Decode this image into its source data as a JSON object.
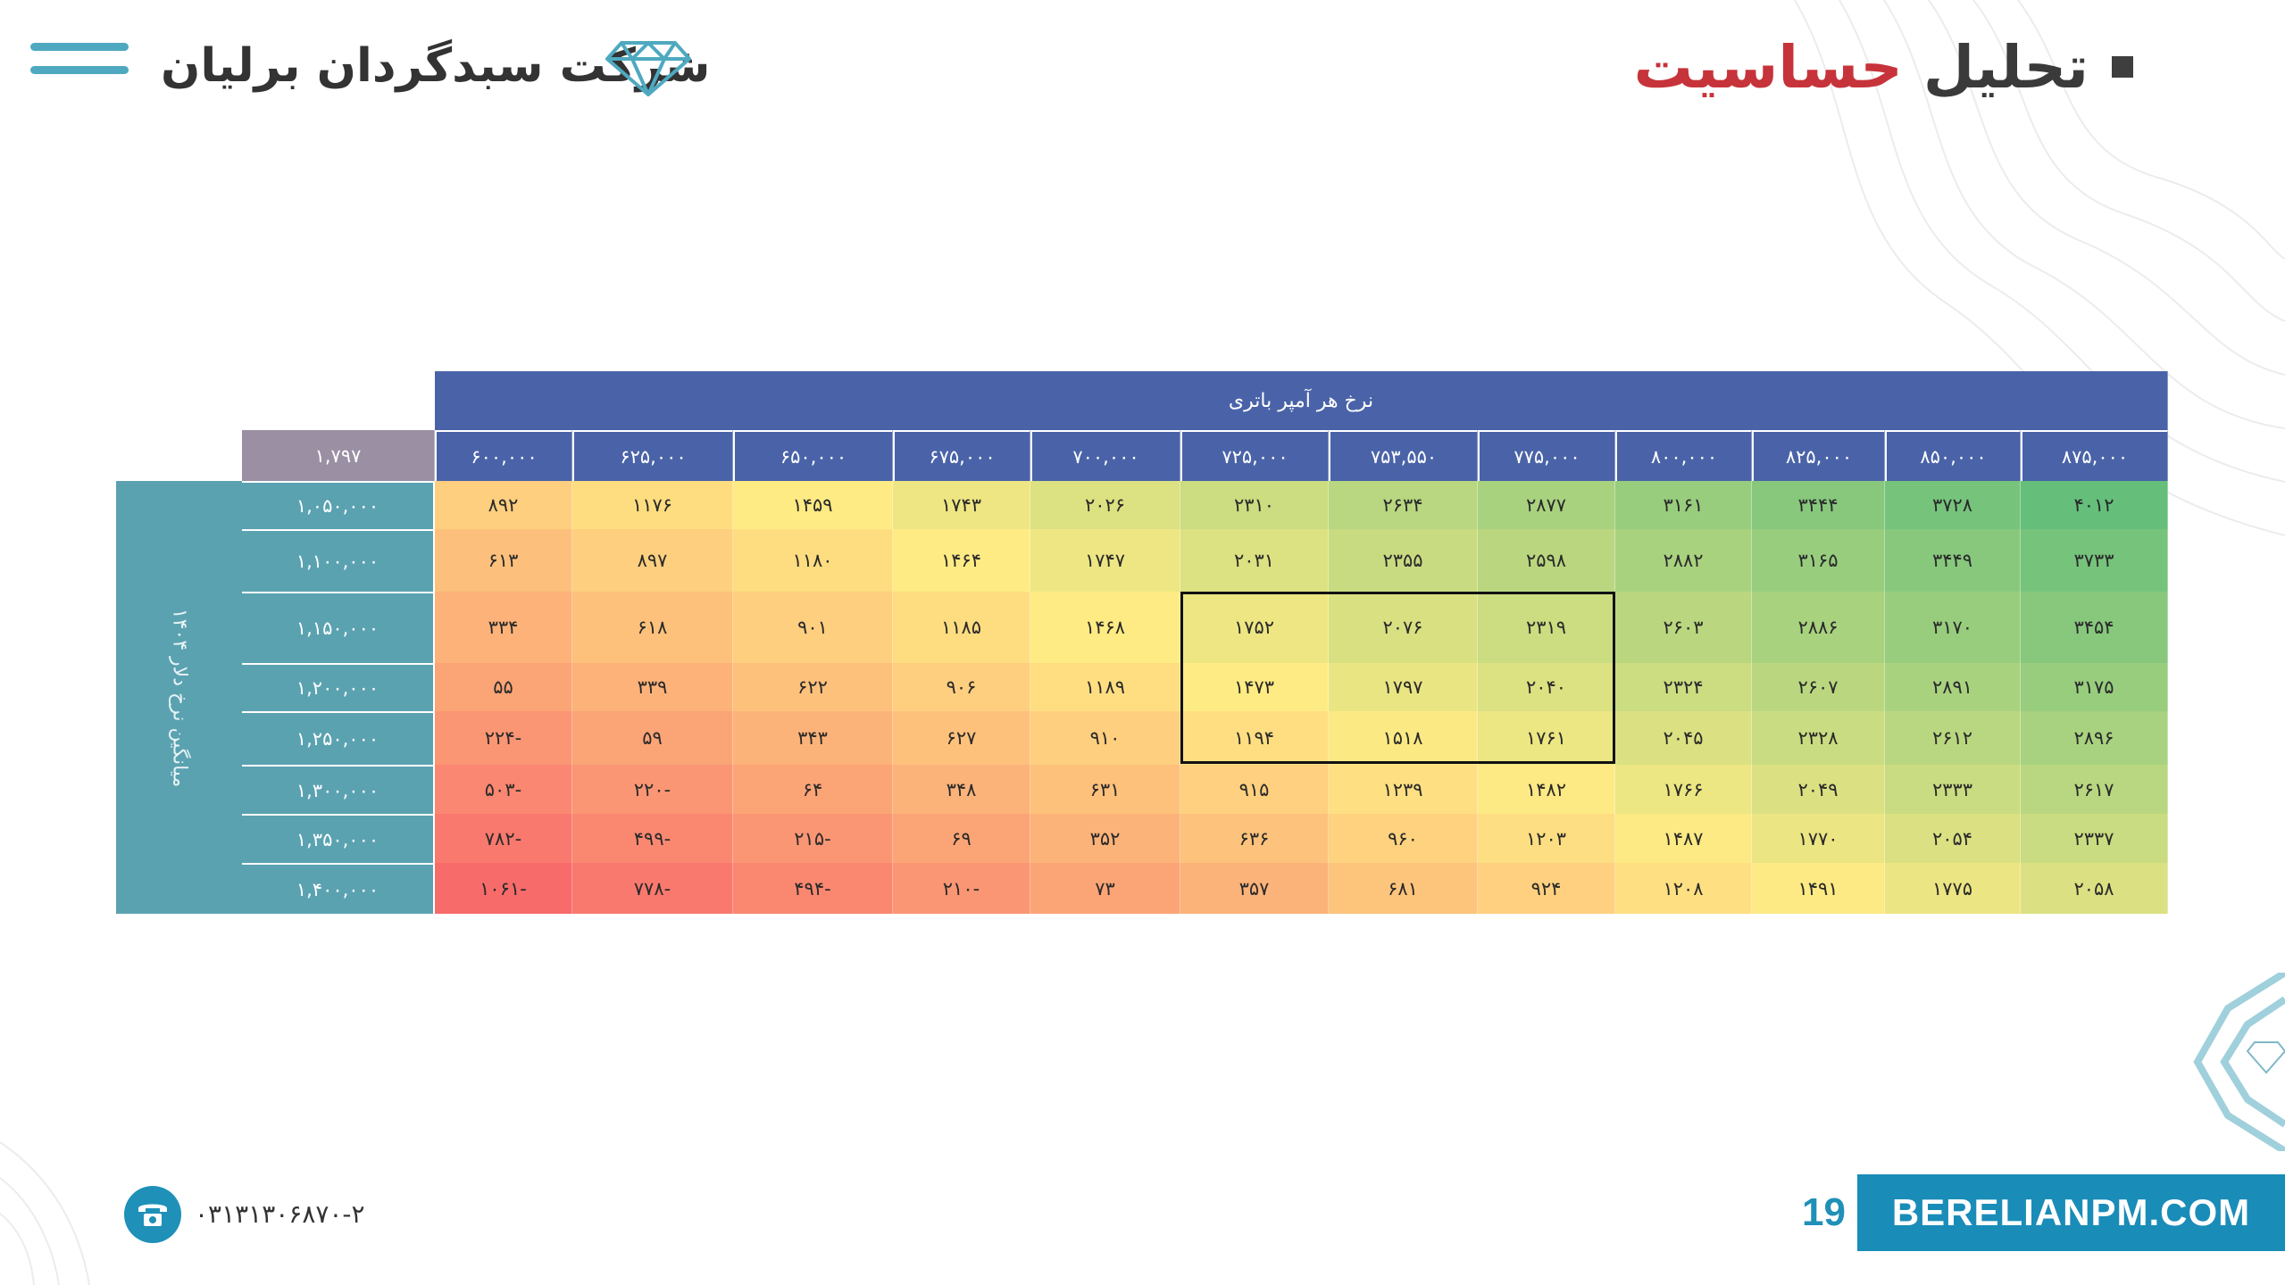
{
  "header": {
    "title_dark": "تحلیل",
    "title_red": "حساسیت",
    "company_name": "شرکت سبدگردان برلیان"
  },
  "icons": {
    "menu": "menu-lines-icon",
    "logo": "diamond-icon",
    "phone": "phone-icon"
  },
  "colors": {
    "header_blue": "#4a63a8",
    "row_header_teal": "#5ba2b1",
    "corner_purple": "#9a8fa3",
    "title_red": "#c7333a",
    "brand_blue": "#1a8cb8"
  },
  "table": {
    "column_group_title": "نرخ هر آمپر باتری",
    "row_group_title": "میانگین نرخ دلار ۱۴۰۴",
    "corner_value": "۱,۷۹۷",
    "columns": [
      "۸۷۵,۰۰۰",
      "۸۵۰,۰۰۰",
      "۸۲۵,۰۰۰",
      "۸۰۰,۰۰۰",
      "۷۷۵,۰۰۰",
      "۷۵۳,۵۵۰",
      "۷۲۵,۰۰۰",
      "۷۰۰,۰۰۰",
      "۶۷۵,۰۰۰",
      "۶۵۰,۰۰۰",
      "۶۲۵,۰۰۰",
      "۶۰۰,۰۰۰"
    ],
    "rows": [
      {
        "label": "۱,۰۵۰,۰۰۰",
        "values": [
          "۴۰۱۲",
          "۳۷۲۸",
          "۳۴۴۴",
          "۳۱۶۱",
          "۲۸۷۷",
          "۲۶۳۴",
          "۲۳۱۰",
          "۲۰۲۶",
          "۱۷۴۳",
          "۱۴۵۹",
          "۱۱۷۶",
          "۸۹۲"
        ]
      },
      {
        "label": "۱,۱۰۰,۰۰۰",
        "values": [
          "۳۷۳۳",
          "۳۴۴۹",
          "۳۱۶۵",
          "۲۸۸۲",
          "۲۵۹۸",
          "۲۳۵۵",
          "۲۰۳۱",
          "۱۷۴۷",
          "۱۴۶۴",
          "۱۱۸۰",
          "۸۹۷",
          "۶۱۳"
        ]
      },
      {
        "label": "۱,۱۵۰,۰۰۰",
        "values": [
          "۳۴۵۴",
          "۳۱۷۰",
          "۲۸۸۶",
          "۲۶۰۳",
          "۲۳۱۹",
          "۲۰۷۶",
          "۱۷۵۲",
          "۱۴۶۸",
          "۱۱۸۵",
          "۹۰۱",
          "۶۱۸",
          "۳۳۴"
        ]
      },
      {
        "label": "۱,۲۰۰,۰۰۰",
        "values": [
          "۳۱۷۵",
          "۲۸۹۱",
          "۲۶۰۷",
          "۲۳۲۴",
          "۲۰۴۰",
          "۱۷۹۷",
          "۱۴۷۳",
          "۱۱۸۹",
          "۹۰۶",
          "۶۲۲",
          "۳۳۹",
          "۵۵"
        ]
      },
      {
        "label": "۱,۲۵۰,۰۰۰",
        "values": [
          "۲۸۹۶",
          "۲۶۱۲",
          "۲۳۲۸",
          "۲۰۴۵",
          "۱۷۶۱",
          "۱۵۱۸",
          "۱۱۹۴",
          "۹۱۰",
          "۶۲۷",
          "۳۴۳",
          "۵۹",
          "۲۲۴-"
        ]
      },
      {
        "label": "۱,۳۰۰,۰۰۰",
        "values": [
          "۲۶۱۷",
          "۲۳۳۳",
          "۲۰۴۹",
          "۱۷۶۶",
          "۱۴۸۲",
          "۱۲۳۹",
          "۹۱۵",
          "۶۳۱",
          "۳۴۸",
          "۶۴",
          "۲۲۰-",
          "۵۰۳-"
        ]
      },
      {
        "label": "۱,۳۵۰,۰۰۰",
        "values": [
          "۲۳۳۷",
          "۲۰۵۴",
          "۱۷۷۰",
          "۱۴۸۷",
          "۱۲۰۳",
          "۹۶۰",
          "۶۳۶",
          "۳۵۲",
          "۶۹",
          "۲۱۵-",
          "۴۹۹-",
          "۷۸۲-"
        ]
      },
      {
        "label": "۱,۴۰۰,۰۰۰",
        "values": [
          "۲۰۵۸",
          "۱۷۷۵",
          "۱۴۹۱",
          "۱۲۰۸",
          "۹۲۴",
          "۶۸۱",
          "۳۵۷",
          "۷۳",
          "۲۱۰-",
          "۴۹۴-",
          "۷۷۸-",
          "۱۰۶۱-"
        ]
      }
    ],
    "heatmap_values": [
      [
        4012,
        3728,
        3444,
        3161,
        2877,
        2634,
        2310,
        2026,
        1743,
        1459,
        1176,
        892
      ],
      [
        3733,
        3449,
        3165,
        2882,
        2598,
        2355,
        2031,
        1747,
        1464,
        1180,
        897,
        613
      ],
      [
        3454,
        3170,
        2886,
        2603,
        2319,
        2076,
        1752,
        1468,
        1185,
        901,
        618,
        334
      ],
      [
        3175,
        2891,
        2607,
        2324,
        2040,
        1797,
        1473,
        1189,
        906,
        622,
        339,
        55
      ],
      [
        2896,
        2612,
        2328,
        2045,
        1761,
        1518,
        1194,
        910,
        627,
        343,
        59,
        -224
      ],
      [
        2617,
        2333,
        2049,
        1766,
        1482,
        1239,
        915,
        631,
        348,
        64,
        -220,
        -503
      ],
      [
        2337,
        2054,
        1770,
        1487,
        1203,
        960,
        636,
        352,
        69,
        -215,
        -499,
        -782
      ],
      [
        2058,
        1775,
        1491,
        1208,
        924,
        681,
        357,
        73,
        -210,
        -494,
        -778,
        -1061
      ]
    ]
  },
  "footer": {
    "phone": "۰۳۱۳۱۳۰۶۸۷۰-۲",
    "page_number": "19",
    "website": "BERELIANPM.COM"
  }
}
